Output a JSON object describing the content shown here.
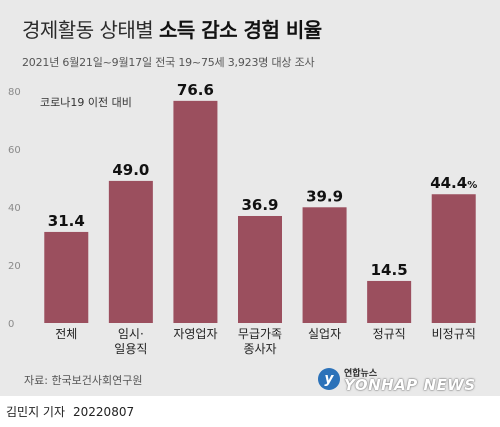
{
  "header": {
    "title_plain": "경제활동 상태별",
    "title_bold": "소득 감소 경험 비율",
    "subtitle": "2021년 6월21일~9월17일 전국 19~75세 3,923명 대상 조사"
  },
  "chart_data": {
    "type": "bar",
    "annotation": "코로나19 이전 대비",
    "categories": [
      "전체",
      "임시·\n일용직",
      "자영업자",
      "무급가족\n종사자",
      "실업자",
      "정규직",
      "비정규직"
    ],
    "values": [
      31.4,
      49.0,
      76.6,
      36.9,
      39.9,
      14.5,
      44.4
    ],
    "value_labels": [
      "31.4",
      "49.0",
      "76.6",
      "36.9",
      "39.9",
      "14.5",
      "44.4"
    ],
    "unit": "%",
    "unit_on_index": 6,
    "y_ticks": [
      0,
      20,
      40,
      60,
      80
    ],
    "ylim": [
      0,
      80
    ],
    "grid": false,
    "bar_color": "#9b4f5e",
    "title": "",
    "xlabel": "",
    "ylabel": ""
  },
  "footer": {
    "source": "자료: 한국보건사회연구원",
    "logo_small": "연합뉴스",
    "logo_big": "YONHAP NEWS",
    "author": "김민지 기자",
    "date": "20220807"
  }
}
